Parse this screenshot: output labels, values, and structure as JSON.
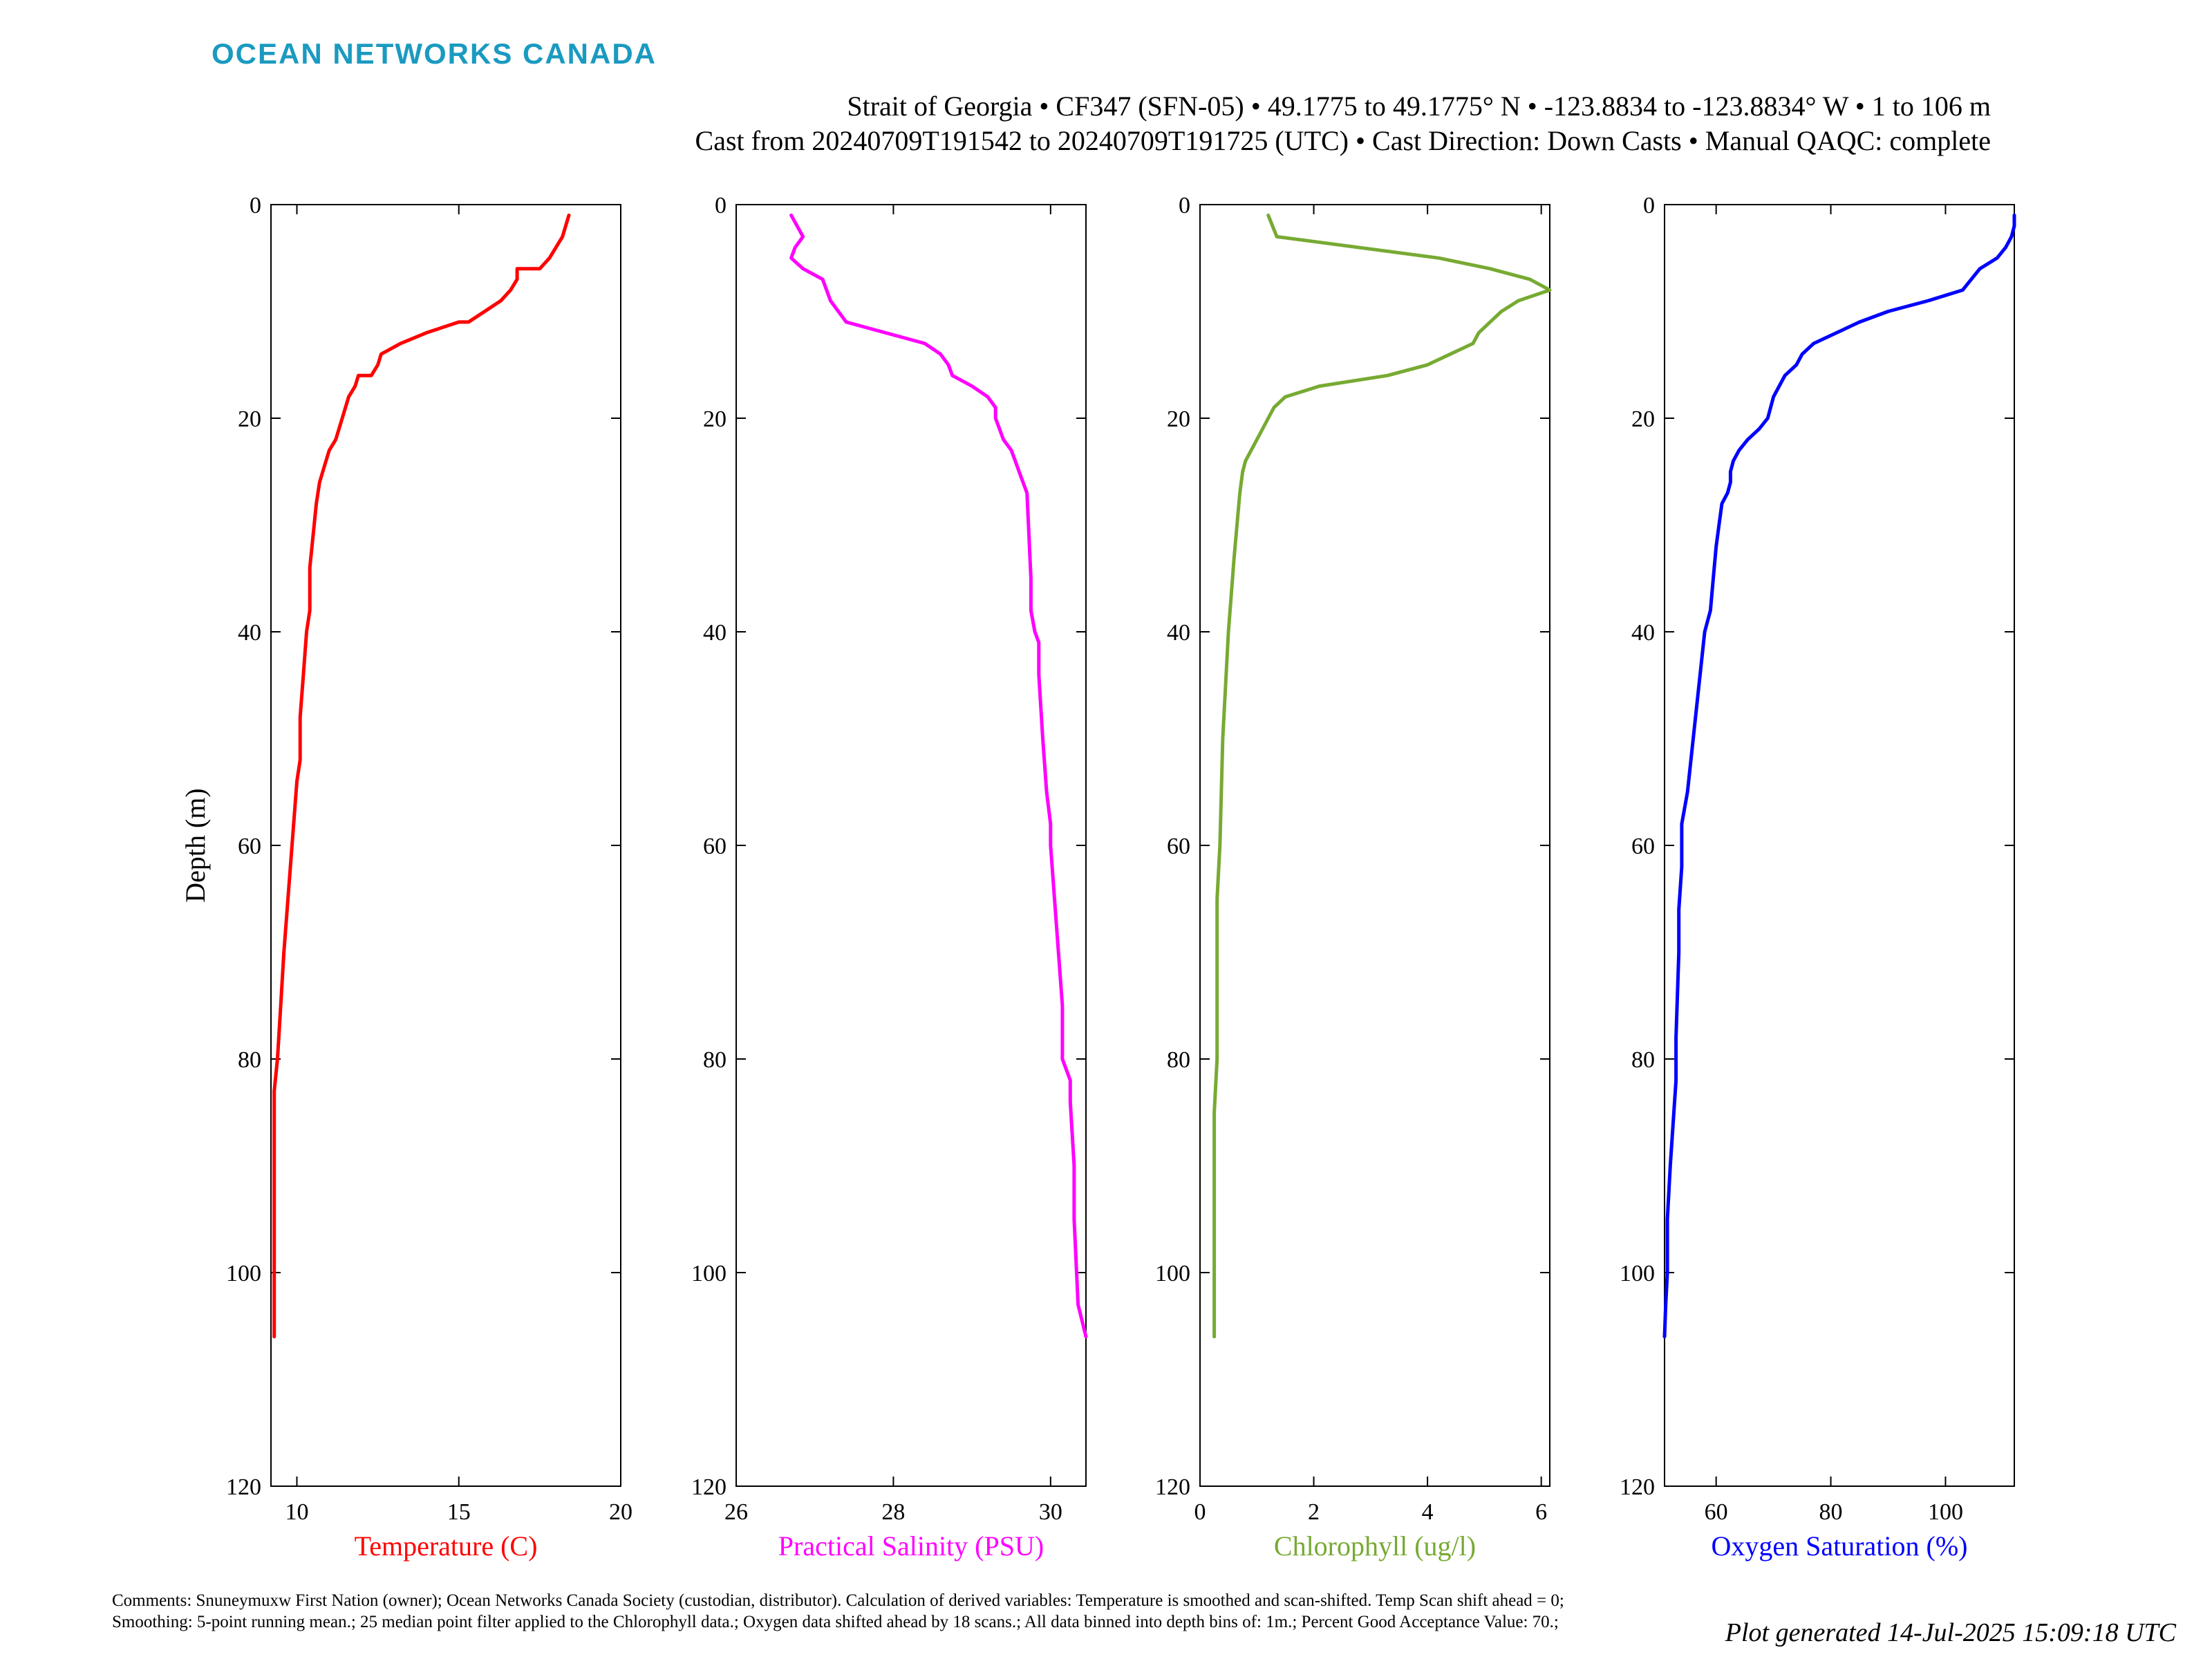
{
  "brand": {
    "name": "OCEAN NETWORKS CANADA",
    "color": "#1a9ac0"
  },
  "header": {
    "line1": "Strait of Georgia • CF347 (SFN-05) • 49.1775 to 49.1775° N • -123.8834 to -123.8834° W • 1 to 106 m",
    "line2": "Cast from 20240709T191542 to 20240709T191725 (UTC) • Cast Direction: Down Casts • Manual QAQC: complete"
  },
  "comments": "Comments: Snuneymuxw First Nation (owner); Ocean Networks Canada Society (custodian, distributor). Calculation of derived variables: Temperature is smoothed and scan-shifted. Temp Scan shift ahead = 0; Smoothing: 5-point running mean.; 25 median point filter applied to the Chlorophyll data.; Oxygen data shifted ahead by 18 scans.; All data binned into depth bins of: 1m.; Percent Good Acceptance Value: 70.;",
  "generated": "Plot generated 14-Jul-2025 15:09:18 UTC",
  "chart_data": [
    {
      "type": "line",
      "xlabel": "Temperature (C)",
      "ylabel": "Depth (m)",
      "color": "#ff0000",
      "xlim": [
        9.2,
        20
      ],
      "ylim": [
        0,
        120
      ],
      "y_reversed": true,
      "xticks": [
        10,
        15,
        20
      ],
      "yticks": [
        0,
        20,
        40,
        60,
        80,
        100,
        120
      ],
      "x": [
        18.4,
        18.2,
        17.8,
        17.5,
        16.8,
        16.8,
        16.6,
        16.3,
        15.8,
        15.3,
        15.0,
        14.0,
        13.2,
        12.6,
        12.5,
        12.3,
        11.9,
        11.8,
        11.6,
        11.5,
        11.3,
        11.2,
        11.0,
        10.9,
        10.7,
        10.6,
        10.5,
        10.4,
        10.4,
        10.3,
        10.2,
        10.1,
        10.1,
        10.0,
        9.9,
        9.8,
        9.7,
        9.6,
        9.5,
        9.4,
        9.3,
        9.3,
        9.3,
        9.3
      ],
      "y": [
        1,
        3,
        5,
        6,
        6,
        7,
        8,
        9,
        10,
        11,
        11,
        12,
        13,
        14,
        15,
        16,
        16,
        17,
        18,
        19,
        21,
        22,
        23,
        24,
        26,
        28,
        31,
        34,
        38,
        40,
        44,
        48,
        52,
        54,
        58,
        62,
        66,
        70,
        75,
        80,
        83,
        90,
        100,
        106
      ]
    },
    {
      "type": "line",
      "xlabel": "Practical Salinity (PSU)",
      "color": "#ff00ff",
      "xlim": [
        26,
        30.45
      ],
      "ylim": [
        0,
        120
      ],
      "y_reversed": true,
      "xticks": [
        26,
        28,
        30
      ],
      "yticks": [
        0,
        20,
        40,
        60,
        80,
        100,
        120
      ],
      "x": [
        26.7,
        26.85,
        26.75,
        26.7,
        26.85,
        27.1,
        27.2,
        27.3,
        27.4,
        27.9,
        28.4,
        28.6,
        28.7,
        28.75,
        29.0,
        29.2,
        29.3,
        29.3,
        29.4,
        29.5,
        29.55,
        29.6,
        29.65,
        29.7,
        29.75,
        29.75,
        29.8,
        29.85,
        29.85,
        29.9,
        29.95,
        30.0,
        30.0,
        30.05,
        30.1,
        30.15,
        30.15,
        30.25,
        30.25,
        30.3,
        30.3,
        30.35,
        30.45
      ],
      "y": [
        1,
        3,
        4,
        5,
        6,
        7,
        9,
        10,
        11,
        12,
        13,
        14,
        15,
        16,
        17,
        18,
        19,
        20,
        22,
        23,
        24,
        25,
        26,
        27,
        35,
        38,
        40,
        41,
        44,
        50,
        55,
        58,
        60,
        65,
        70,
        75,
        80,
        82,
        84,
        90,
        95,
        103,
        106
      ]
    },
    {
      "type": "line",
      "xlabel": "Chlorophyll (ug/l)",
      "color": "#77aa33",
      "xlim": [
        0,
        6.15
      ],
      "ylim": [
        0,
        120
      ],
      "y_reversed": true,
      "xticks": [
        0,
        2,
        4,
        6
      ],
      "yticks": [
        0,
        20,
        40,
        60,
        80,
        100,
        120
      ],
      "x": [
        1.2,
        1.35,
        4.2,
        5.1,
        5.8,
        6.15,
        5.6,
        5.3,
        5.1,
        4.9,
        4.8,
        4.4,
        4.0,
        3.3,
        2.1,
        1.5,
        1.3,
        1.2,
        1.1,
        1.0,
        0.9,
        0.8,
        0.75,
        0.7,
        0.65,
        0.6,
        0.5,
        0.4,
        0.35,
        0.3,
        0.3,
        0.3,
        0.25,
        0.25,
        0.25,
        0.25
      ],
      "y": [
        1,
        3,
        5,
        6,
        7,
        8,
        9,
        10,
        11,
        12,
        13,
        14,
        15,
        16,
        17,
        18,
        19,
        20,
        21,
        22,
        23,
        24,
        25,
        27,
        30,
        33,
        40,
        50,
        60,
        65,
        70,
        80,
        85,
        90,
        100,
        106
      ]
    },
    {
      "type": "line",
      "xlabel": "Oxygen Saturation (%)",
      "color": "#0000ff",
      "xlim": [
        51,
        112
      ],
      "ylim": [
        0,
        120
      ],
      "y_reversed": true,
      "xticks": [
        60,
        80,
        100
      ],
      "yticks": [
        0,
        20,
        40,
        60,
        80,
        100,
        120
      ],
      "x": [
        112,
        112,
        111.5,
        110.5,
        109,
        106,
        103,
        97,
        90,
        85,
        81,
        77,
        75,
        74,
        72,
        70,
        69,
        67.5,
        65.5,
        64,
        63,
        62.5,
        62.5,
        62,
        61,
        60.5,
        60,
        59.5,
        59,
        58,
        57,
        56,
        55,
        54,
        54,
        53.5,
        53.5,
        53,
        53,
        52,
        51.5,
        51.5,
        51.2,
        51
      ],
      "y": [
        1,
        2,
        3,
        4,
        5,
        6,
        8,
        9,
        10,
        11,
        12,
        13,
        14,
        15,
        16,
        18,
        20,
        21,
        22,
        23,
        24,
        25,
        26,
        27,
        28,
        30,
        32,
        35,
        38,
        40,
        45,
        50,
        55,
        58,
        62,
        66,
        70,
        78,
        82,
        90,
        95,
        100,
        103,
        106
      ]
    }
  ]
}
